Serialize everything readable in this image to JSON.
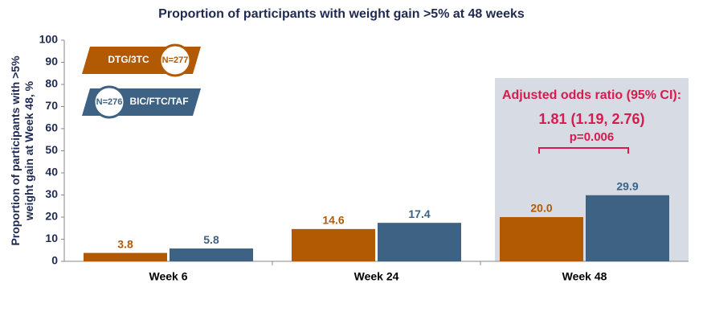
{
  "chart_data": {
    "type": "bar",
    "title": "Proportion of participants with weight gain >5% at 48 weeks",
    "y_label": [
      "Proportion of participants with >5%",
      "weight gain at Week 48, %"
    ],
    "categories": [
      "Week 6",
      "Week 24",
      "Week 48"
    ],
    "series": [
      {
        "name": "DTG/3TC",
        "n": "N=277",
        "color": "#b15a03",
        "values": [
          3.8,
          14.6,
          20
        ],
        "value_labels": [
          "3.8",
          "14.6",
          "20.0"
        ]
      },
      {
        "name": "BIC/FTC/TAF",
        "n": "N=276",
        "color": "#3d6283",
        "values": [
          5.8,
          17.4,
          29.9
        ],
        "value_labels": [
          "5.8",
          "17.4",
          "29.9"
        ]
      }
    ],
    "ylim": [
      0,
      100
    ],
    "yticks": [
      0,
      10,
      20,
      30,
      40,
      50,
      60,
      70,
      80,
      90,
      100
    ],
    "grid": false,
    "annotation": {
      "title": "Adjusted odds ratio (95% CI):",
      "estimate": "1.81 (1.19, 2.76)",
      "p_value": "p=0.006",
      "color": "#d81b4f"
    }
  }
}
